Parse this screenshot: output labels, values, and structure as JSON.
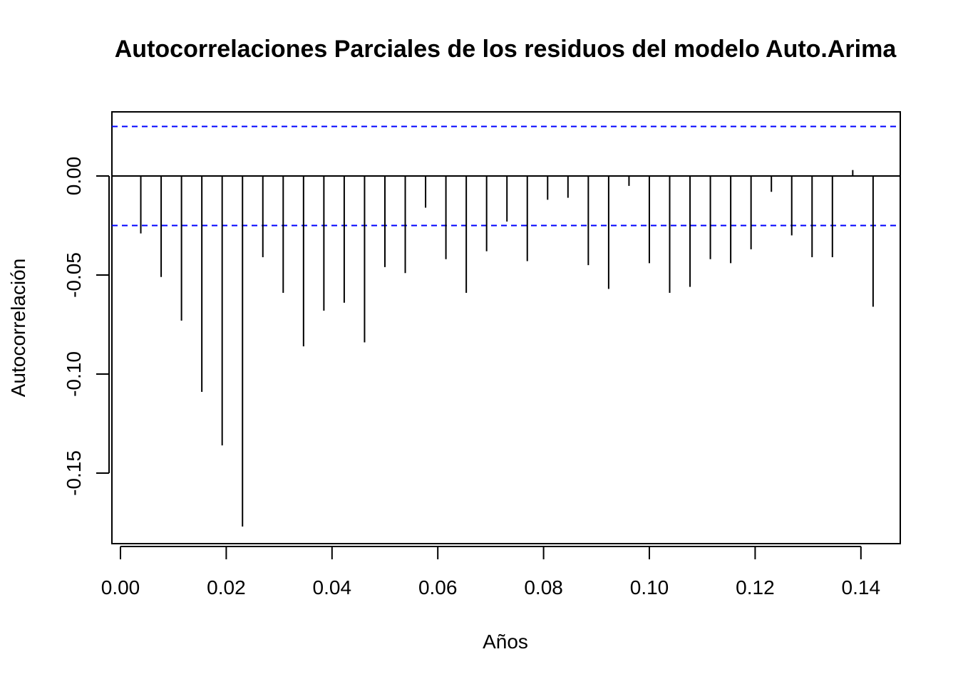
{
  "chart_data": {
    "type": "bar",
    "title": "Autocorrelaciones Parciales de los residuos del modelo Auto.Arima",
    "xlabel": "Años",
    "ylabel": "Autocorrelación",
    "xlim": [
      -0.0016,
      0.1474
    ],
    "ylim": [
      -0.18,
      0.033
    ],
    "x_ticks": [
      0.0,
      0.02,
      0.04,
      0.06,
      0.08,
      0.1,
      0.12,
      0.14
    ],
    "x_tick_labels": [
      "0.00",
      "0.02",
      "0.04",
      "0.06",
      "0.08",
      "0.10",
      "0.12",
      "0.14"
    ],
    "y_ticks": [
      -0.15,
      -0.1,
      -0.05,
      0.0
    ],
    "y_tick_labels": [
      "-0.15",
      "-0.10",
      "-0.05",
      "0.00"
    ],
    "confidence_bounds": [
      0.025,
      -0.025
    ],
    "colors": {
      "bars": "#000000",
      "bounds": "#0000ff",
      "zero_line": "#000000"
    },
    "lag_step": 0.003846,
    "values": [
      -0.029,
      -0.051,
      -0.073,
      -0.109,
      -0.136,
      -0.177,
      -0.041,
      -0.059,
      -0.086,
      -0.068,
      -0.064,
      -0.084,
      -0.046,
      -0.049,
      -0.016,
      -0.042,
      -0.059,
      -0.038,
      -0.023,
      -0.043,
      -0.012,
      -0.011,
      -0.045,
      -0.057,
      -0.005,
      -0.044,
      -0.059,
      -0.056,
      -0.042,
      -0.044,
      -0.037,
      -0.008,
      -0.03,
      -0.041,
      -0.041,
      0.003,
      -0.066
    ]
  }
}
